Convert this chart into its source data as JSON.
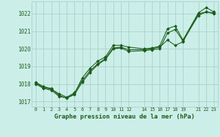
{
  "title": "Graphe pression niveau de la mer (hPa)",
  "background_color": "#cceee8",
  "grid_color": "#aad4ce",
  "line_color": "#1a5c1a",
  "xlim": [
    -0.5,
    23.5
  ],
  "ylim": [
    1016.7,
    1022.7
  ],
  "yticks": [
    1017,
    1018,
    1019,
    1020,
    1021,
    1022
  ],
  "xtick_labels": [
    "0",
    "1",
    "2",
    "3",
    "4",
    "5",
    "6",
    "7",
    "8",
    "9",
    "1011",
    "12",
    "",
    "14",
    "1516",
    "171819",
    "",
    "21",
    "2223"
  ],
  "line1_x": [
    0,
    1,
    2,
    3,
    4,
    5,
    6,
    7,
    8,
    9,
    10,
    11,
    12,
    14,
    15,
    16,
    17,
    18,
    19,
    21,
    22,
    23
  ],
  "line1_y": [
    1018.1,
    1017.85,
    1017.75,
    1017.35,
    1017.2,
    1017.45,
    1018.35,
    1018.9,
    1019.3,
    1019.55,
    1020.2,
    1020.2,
    1020.1,
    1020.0,
    1020.05,
    1020.15,
    1021.15,
    1021.3,
    1020.5,
    1022.05,
    1022.35,
    1022.1
  ],
  "line2_x": [
    0,
    1,
    2,
    3,
    4,
    5,
    6,
    7,
    8,
    9,
    10,
    11,
    12,
    14,
    15,
    16,
    17,
    18,
    19,
    21,
    22,
    23
  ],
  "line2_y": [
    1018.05,
    1017.8,
    1017.7,
    1017.45,
    1017.25,
    1017.5,
    1018.2,
    1018.75,
    1019.15,
    1019.45,
    1020.05,
    1020.1,
    1019.95,
    1019.95,
    1020.0,
    1020.1,
    1020.5,
    1020.2,
    1020.4,
    1022.0,
    1022.1,
    1022.0
  ],
  "line3_x": [
    0,
    1,
    2,
    3,
    4,
    5,
    6,
    7,
    8,
    9,
    10,
    11,
    12,
    14,
    15,
    16,
    17,
    18,
    19,
    21,
    22,
    23
  ],
  "line3_y": [
    1018.0,
    1017.75,
    1017.65,
    1017.3,
    1017.2,
    1017.4,
    1018.1,
    1018.65,
    1019.1,
    1019.4,
    1020.0,
    1020.05,
    1019.85,
    1019.9,
    1019.95,
    1020.0,
    1020.9,
    1021.1,
    1020.45,
    1021.9,
    1022.1,
    1022.05
  ]
}
